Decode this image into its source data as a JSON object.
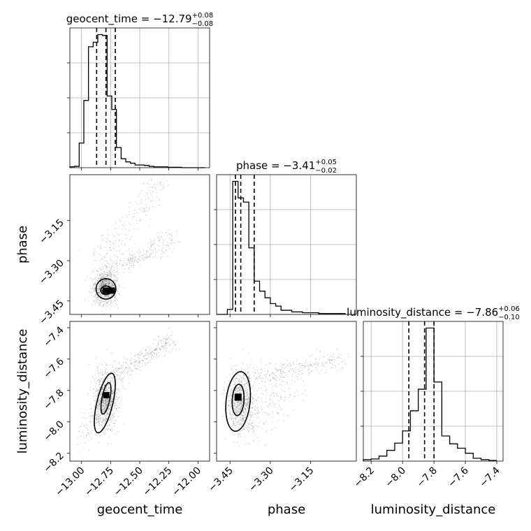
{
  "figure": {
    "type": "corner"
  },
  "chart_data": {
    "type": "corner",
    "parameters": [
      "geocent_time",
      "phase",
      "luminosity_distance"
    ],
    "axis_labels": [
      "geocent_time",
      "phase",
      "luminosity_distance"
    ],
    "ranges": {
      "geocent_time": [
        -13.1,
        -11.9
      ],
      "phase": [
        -3.5,
        -2.98
      ],
      "luminosity_distance": [
        -8.25,
        -7.36
      ]
    },
    "ticks": {
      "geocent_time": {
        "values": [
          -13.0,
          -12.75,
          -12.5,
          -12.25,
          -12.0
        ],
        "labels": [
          "−13.00",
          "−12.75",
          "−12.50",
          "−12.25",
          "−12.00"
        ]
      },
      "phase": {
        "values": [
          -3.45,
          -3.3,
          -3.15
        ],
        "labels": [
          "−3.45",
          "−3.30",
          "−3.15"
        ]
      },
      "luminosity_distance": {
        "values": [
          -8.2,
          -8.0,
          -7.8,
          -7.6,
          -7.4
        ],
        "labels": [
          "−8.2",
          "−8.0",
          "−7.8",
          "−7.6",
          "−7.4"
        ]
      }
    },
    "titles": [
      {
        "param": "geocent_time",
        "base": "geocent_time = −12.79",
        "plus": "+0.08",
        "minus": "−0.08"
      },
      {
        "param": "phase",
        "base": "phase = −3.41",
        "plus": "+0.05",
        "minus": "−0.02"
      },
      {
        "param": "luminosity_distance",
        "base": "luminosity_distance = −7.86",
        "plus": "+0.06",
        "minus": "−0.10"
      }
    ],
    "histograms": {
      "geocent_time": {
        "bin_edges": [
          -13.1,
          -13.06,
          -13.02,
          -12.98,
          -12.94,
          -12.9,
          -12.86,
          -12.82,
          -12.78,
          -12.74,
          -12.7,
          -12.66,
          -12.62,
          -12.58,
          -12.54,
          -12.5,
          -12.46,
          -12.42,
          -12.38,
          -12.34,
          -12.3,
          -12.26,
          -12.22,
          -12.18,
          -12.14,
          -12.1,
          -12.06,
          -12.02,
          -11.98,
          -11.94
        ],
        "counts": [
          2,
          3,
          55,
          150,
          270,
          280,
          297,
          295,
          160,
          130,
          45,
          20,
          13,
          10,
          6,
          6,
          5,
          3,
          2,
          2,
          2,
          1,
          1,
          1,
          0,
          0,
          0,
          0,
          0
        ],
        "quantiles": [
          -12.87,
          -12.79,
          -12.71
        ]
      },
      "phase": {
        "bin_edges": [
          -3.5,
          -3.48,
          -3.46,
          -3.44,
          -3.42,
          -3.4,
          -3.38,
          -3.36,
          -3.34,
          -3.32,
          -3.3,
          -3.28,
          -3.26,
          -3.24,
          -3.22,
          -3.2,
          -3.18,
          -3.16,
          -3.14,
          -3.12,
          -3.1,
          -3.08,
          -3.06,
          -3.04,
          -3.02
        ],
        "counts": [
          0,
          0,
          6,
          160,
          140,
          135,
          80,
          40,
          28,
          20,
          13,
          10,
          5,
          5,
          3,
          3,
          2,
          2,
          2,
          1,
          1,
          1,
          1,
          1
        ],
        "quantiles": [
          -3.43,
          -3.41,
          -3.36
        ]
      },
      "luminosity_distance": {
        "bin_edges": [
          -8.25,
          -8.2,
          -8.15,
          -8.1,
          -8.05,
          -8.0,
          -7.95,
          -7.9,
          -7.85,
          -7.8,
          -7.75,
          -7.7,
          -7.65,
          -7.6,
          -7.55,
          -7.5,
          -7.45,
          -7.4
        ],
        "counts": [
          2,
          3,
          7,
          15,
          25,
          42,
          70,
          100,
          185,
          110,
          35,
          24,
          18,
          11,
          4,
          2,
          1
        ],
        "quantiles": [
          -7.96,
          -7.86,
          -7.8
        ]
      }
    },
    "scatter": {
      "pairs": [
        "phase|geocent_time",
        "luminosity_distance|geocent_time",
        "luminosity_distance|phase"
      ],
      "contour_levels": [
        0.393,
        0.865
      ]
    }
  }
}
